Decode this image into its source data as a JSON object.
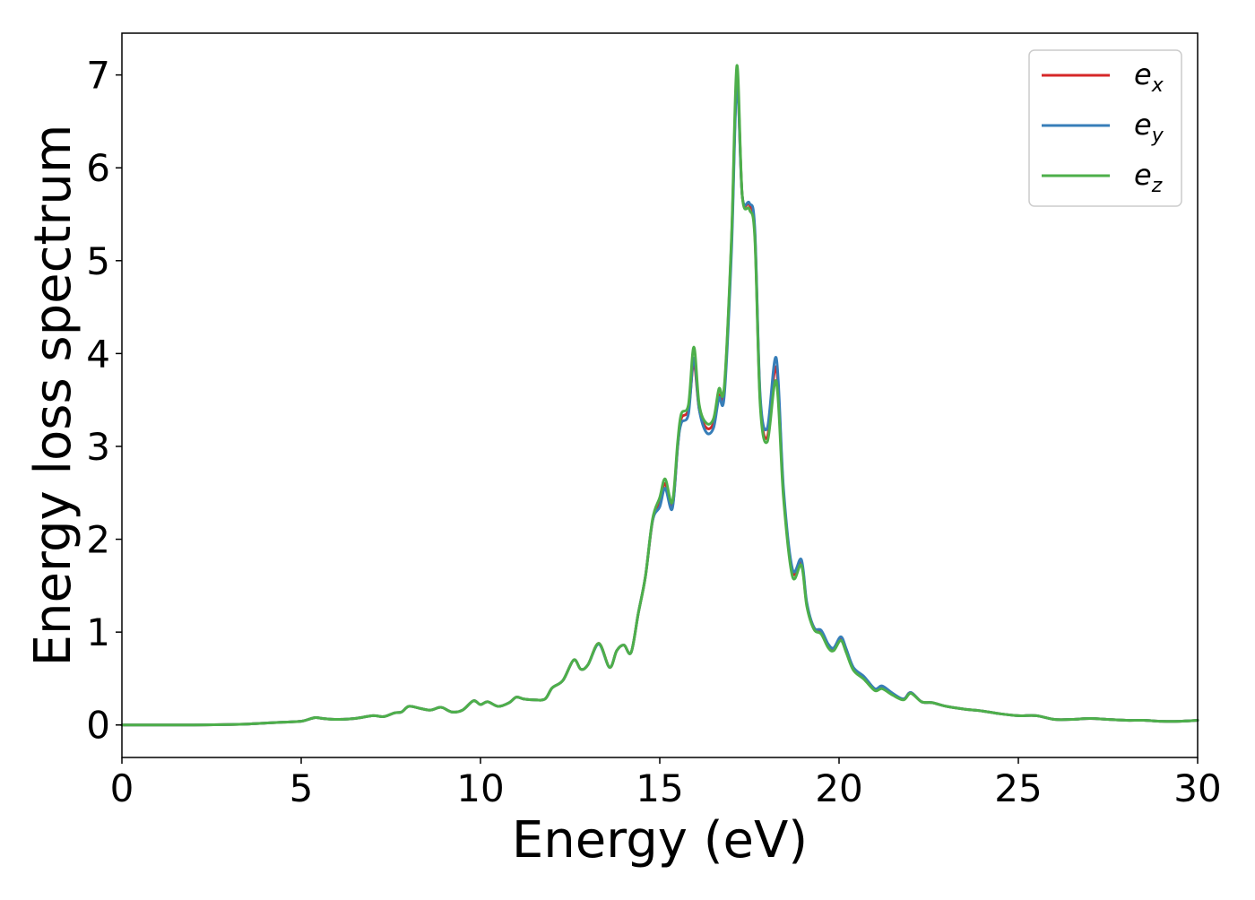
{
  "chart_data": {
    "type": "line",
    "title": "",
    "xlabel": "Energy (eV)",
    "ylabel": "Energy loss spectrum",
    "xlim": [
      0,
      30
    ],
    "ylim": [
      -0.35,
      7.45
    ],
    "xticks": [
      0,
      5,
      10,
      15,
      20,
      25,
      30
    ],
    "yticks": [
      0,
      1,
      2,
      3,
      4,
      5,
      6,
      7
    ],
    "grid": false,
    "legend_position": "top-right",
    "x": [
      0,
      1,
      2,
      3,
      3.5,
      4,
      4.5,
      5,
      5.2,
      5.4,
      5.6,
      6,
      6.5,
      7,
      7.3,
      7.6,
      7.8,
      8,
      8.3,
      8.6,
      8.9,
      9.2,
      9.5,
      9.8,
      10.0,
      10.2,
      10.5,
      10.8,
      11.0,
      11.2,
      11.5,
      11.8,
      12.0,
      12.3,
      12.6,
      12.8,
      13.0,
      13.3,
      13.6,
      13.8,
      14.0,
      14.2,
      14.4,
      14.6,
      14.8,
      15.0,
      15.15,
      15.35,
      15.5,
      15.6,
      15.8,
      15.95,
      16.1,
      16.3,
      16.5,
      16.65,
      16.8,
      17.0,
      17.15,
      17.3,
      17.5,
      17.65,
      17.8,
      18.0,
      18.25,
      18.45,
      18.7,
      18.95,
      19.1,
      19.3,
      19.5,
      19.7,
      19.85,
      20.05,
      20.2,
      20.4,
      20.7,
      21.0,
      21.2,
      21.5,
      21.8,
      22.0,
      22.3,
      22.6,
      23.0,
      23.5,
      24.0,
      24.5,
      25.0,
      25.5,
      26.0,
      26.5,
      27.0,
      27.5,
      28.0,
      28.5,
      29.0,
      29.5,
      30.0
    ],
    "series": [
      {
        "name": "e_x",
        "color": "#d62728",
        "values": [
          0,
          0,
          0,
          0.005,
          0.01,
          0.02,
          0.03,
          0.04,
          0.06,
          0.08,
          0.07,
          0.06,
          0.07,
          0.1,
          0.09,
          0.13,
          0.14,
          0.2,
          0.18,
          0.16,
          0.19,
          0.14,
          0.16,
          0.26,
          0.22,
          0.25,
          0.2,
          0.24,
          0.3,
          0.28,
          0.27,
          0.28,
          0.4,
          0.48,
          0.7,
          0.6,
          0.65,
          0.88,
          0.62,
          0.8,
          0.86,
          0.78,
          1.2,
          1.6,
          2.2,
          2.4,
          2.6,
          2.35,
          3.0,
          3.3,
          3.4,
          3.9,
          3.4,
          3.2,
          3.25,
          3.55,
          3.6,
          5.2,
          6.95,
          5.7,
          5.6,
          5.3,
          3.5,
          3.1,
          3.85,
          2.5,
          1.65,
          1.75,
          1.3,
          1.05,
          1.0,
          0.85,
          0.82,
          0.93,
          0.8,
          0.6,
          0.5,
          0.38,
          0.4,
          0.33,
          0.28,
          0.35,
          0.25,
          0.24,
          0.2,
          0.17,
          0.15,
          0.12,
          0.1,
          0.1,
          0.06,
          0.06,
          0.07,
          0.06,
          0.05,
          0.05,
          0.04,
          0.04,
          0.05
        ]
      },
      {
        "name": "e_y",
        "color": "#377eb8",
        "values": [
          0,
          0,
          0,
          0.005,
          0.01,
          0.02,
          0.03,
          0.04,
          0.06,
          0.08,
          0.07,
          0.06,
          0.07,
          0.1,
          0.09,
          0.13,
          0.14,
          0.2,
          0.18,
          0.16,
          0.19,
          0.14,
          0.16,
          0.26,
          0.22,
          0.25,
          0.2,
          0.24,
          0.3,
          0.28,
          0.27,
          0.28,
          0.4,
          0.48,
          0.7,
          0.6,
          0.65,
          0.87,
          0.62,
          0.8,
          0.86,
          0.78,
          1.2,
          1.6,
          2.2,
          2.35,
          2.55,
          2.33,
          3.0,
          3.25,
          3.35,
          3.95,
          3.4,
          3.15,
          3.2,
          3.52,
          3.55,
          5.1,
          6.9,
          5.7,
          5.62,
          5.35,
          3.55,
          3.2,
          3.95,
          2.55,
          1.68,
          1.78,
          1.32,
          1.05,
          1.02,
          0.87,
          0.83,
          0.95,
          0.82,
          0.62,
          0.52,
          0.39,
          0.42,
          0.34,
          0.28,
          0.35,
          0.25,
          0.24,
          0.2,
          0.17,
          0.15,
          0.12,
          0.1,
          0.1,
          0.06,
          0.06,
          0.07,
          0.06,
          0.05,
          0.05,
          0.04,
          0.04,
          0.05
        ]
      },
      {
        "name": "e_z",
        "color": "#4daf4a",
        "values": [
          0,
          0,
          0,
          0.005,
          0.01,
          0.02,
          0.03,
          0.04,
          0.06,
          0.08,
          0.07,
          0.06,
          0.07,
          0.1,
          0.09,
          0.13,
          0.14,
          0.2,
          0.18,
          0.16,
          0.19,
          0.14,
          0.16,
          0.26,
          0.22,
          0.25,
          0.2,
          0.24,
          0.3,
          0.28,
          0.27,
          0.28,
          0.4,
          0.48,
          0.7,
          0.6,
          0.65,
          0.88,
          0.62,
          0.8,
          0.86,
          0.78,
          1.2,
          1.6,
          2.22,
          2.45,
          2.65,
          2.4,
          3.05,
          3.35,
          3.45,
          4.07,
          3.45,
          3.25,
          3.3,
          3.62,
          3.65,
          5.25,
          7.1,
          5.7,
          5.55,
          5.25,
          3.45,
          3.05,
          3.7,
          2.45,
          1.6,
          1.72,
          1.28,
          1.03,
          0.98,
          0.83,
          0.8,
          0.91,
          0.78,
          0.59,
          0.49,
          0.37,
          0.39,
          0.32,
          0.27,
          0.34,
          0.25,
          0.24,
          0.2,
          0.17,
          0.15,
          0.12,
          0.1,
          0.1,
          0.06,
          0.06,
          0.07,
          0.06,
          0.05,
          0.05,
          0.04,
          0.04,
          0.05
        ]
      }
    ],
    "legend": [
      {
        "label": "e",
        "sub": "x",
        "color": "#d62728"
      },
      {
        "label": "e",
        "sub": "y",
        "color": "#377eb8"
      },
      {
        "label": "e",
        "sub": "z",
        "color": "#4daf4a"
      }
    ]
  }
}
